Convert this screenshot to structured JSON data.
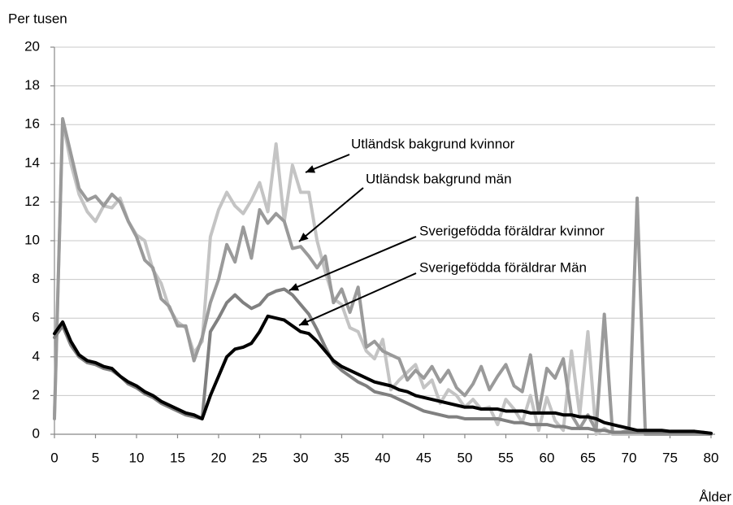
{
  "chart_data": {
    "type": "line",
    "y_label": "Per tusen",
    "x_label": "Ålder",
    "x": [
      0,
      1,
      2,
      3,
      4,
      5,
      6,
      7,
      8,
      9,
      10,
      11,
      12,
      13,
      14,
      15,
      16,
      17,
      18,
      19,
      20,
      21,
      22,
      23,
      24,
      25,
      26,
      27,
      28,
      29,
      30,
      31,
      32,
      33,
      34,
      35,
      36,
      37,
      38,
      39,
      40,
      41,
      42,
      43,
      44,
      45,
      46,
      47,
      48,
      49,
      50,
      51,
      52,
      53,
      54,
      55,
      56,
      57,
      58,
      59,
      60,
      61,
      62,
      63,
      64,
      65,
      66,
      67,
      68,
      69,
      70,
      71,
      72,
      73,
      74,
      75,
      76,
      77,
      78,
      79,
      80
    ],
    "xlim": [
      0,
      80.5
    ],
    "xticks": [
      0,
      5,
      10,
      15,
      20,
      25,
      30,
      35,
      40,
      45,
      50,
      55,
      60,
      65,
      70,
      75,
      80
    ],
    "ylim": [
      0,
      20
    ],
    "yticks": [
      0,
      2,
      4,
      6,
      8,
      10,
      12,
      14,
      16,
      18,
      20
    ],
    "grid": true,
    "series": [
      {
        "name": "Utländsk bakgrund kvinnor",
        "color": "#c4c4c4",
        "values": [
          1.0,
          16.2,
          14.0,
          12.4,
          11.5,
          11.0,
          11.8,
          11.7,
          12.2,
          11.0,
          10.3,
          10.0,
          8.5,
          7.8,
          6.5,
          5.8,
          5.5,
          4.2,
          4.8,
          10.2,
          11.6,
          12.5,
          11.8,
          11.4,
          12.1,
          13.0,
          11.5,
          15.0,
          11.0,
          13.9,
          12.5,
          12.5,
          10.0,
          8.4,
          7.0,
          6.7,
          5.5,
          5.3,
          4.3,
          3.9,
          4.9,
          2.3,
          2.8,
          3.2,
          3.6,
          2.4,
          2.8,
          1.6,
          2.3,
          2.0,
          1.4,
          1.8,
          1.3,
          1.4,
          0.5,
          1.8,
          1.3,
          0.6,
          2.0,
          0.2,
          1.9,
          0.7,
          0.2,
          4.3,
          1.0,
          5.3,
          0,
          0.3,
          0,
          0,
          0,
          0,
          0,
          0,
          0,
          0,
          0,
          0,
          0,
          0,
          0
        ]
      },
      {
        "name": "Utländsk bakgrund män",
        "color": "#9a9a9a",
        "values": [
          0.8,
          16.3,
          14.5,
          12.7,
          12.1,
          12.3,
          11.8,
          12.4,
          12.0,
          11.0,
          10.2,
          9.0,
          8.6,
          7.0,
          6.6,
          5.6,
          5.6,
          3.8,
          5.0,
          6.8,
          8.0,
          9.8,
          8.9,
          10.7,
          9.1,
          11.6,
          10.9,
          11.4,
          11.0,
          9.6,
          9.7,
          9.2,
          8.6,
          9.2,
          6.8,
          7.5,
          6.3,
          7.6,
          4.5,
          4.8,
          4.3,
          4.1,
          3.9,
          2.8,
          3.3,
          2.9,
          3.5,
          2.7,
          3.3,
          2.4,
          2.0,
          2.6,
          3.5,
          2.3,
          3.0,
          3.6,
          2.5,
          2.2,
          4.1,
          1.1,
          3.4,
          2.9,
          3.9,
          1.0,
          0.3,
          1.0,
          0.2,
          6.2,
          0.1,
          0.1,
          0.2,
          12.2,
          0,
          0,
          0,
          0,
          0,
          0,
          0,
          0,
          0
        ]
      },
      {
        "name": "Sverigefödda föräldrar kvinnor",
        "color": "#808080",
        "values": [
          5.0,
          5.6,
          4.6,
          4.0,
          3.7,
          3.6,
          3.4,
          3.3,
          3.0,
          2.6,
          2.4,
          2.1,
          1.9,
          1.6,
          1.4,
          1.2,
          1.0,
          0.9,
          0.8,
          5.3,
          6.0,
          6.8,
          7.2,
          6.8,
          6.5,
          6.7,
          7.2,
          7.4,
          7.5,
          7.2,
          6.7,
          6.2,
          5.4,
          4.5,
          3.7,
          3.3,
          3.0,
          2.7,
          2.5,
          2.2,
          2.1,
          2.0,
          1.8,
          1.6,
          1.4,
          1.2,
          1.1,
          1.0,
          0.9,
          0.9,
          0.8,
          0.8,
          0.8,
          0.8,
          0.8,
          0.7,
          0.6,
          0.6,
          0.5,
          0.5,
          0.5,
          0.4,
          0.4,
          0.3,
          0.3,
          0.3,
          0.2,
          0.2,
          0.1,
          0.1,
          0.1,
          0.1,
          0.1,
          0.1,
          0.1,
          0.1,
          0.1,
          0.1,
          0.1,
          0.1,
          0.05
        ]
      },
      {
        "name": "Sverigefödda föräldrar Män",
        "color": "#000000",
        "values": [
          5.2,
          5.8,
          4.8,
          4.1,
          3.8,
          3.7,
          3.5,
          3.4,
          3.0,
          2.7,
          2.5,
          2.2,
          2.0,
          1.7,
          1.5,
          1.3,
          1.1,
          1.0,
          0.8,
          2.0,
          3.0,
          4.0,
          4.4,
          4.5,
          4.7,
          5.3,
          6.1,
          6.0,
          5.9,
          5.6,
          5.3,
          5.2,
          4.8,
          4.3,
          3.8,
          3.5,
          3.3,
          3.1,
          2.9,
          2.7,
          2.6,
          2.5,
          2.3,
          2.2,
          2.0,
          1.9,
          1.8,
          1.7,
          1.6,
          1.5,
          1.4,
          1.4,
          1.3,
          1.3,
          1.3,
          1.2,
          1.2,
          1.2,
          1.1,
          1.1,
          1.1,
          1.1,
          1.0,
          1.0,
          0.9,
          0.9,
          0.8,
          0.6,
          0.5,
          0.4,
          0.3,
          0.2,
          0.2,
          0.2,
          0.2,
          0.15,
          0.15,
          0.15,
          0.15,
          0.1,
          0.05
        ]
      }
    ]
  }
}
